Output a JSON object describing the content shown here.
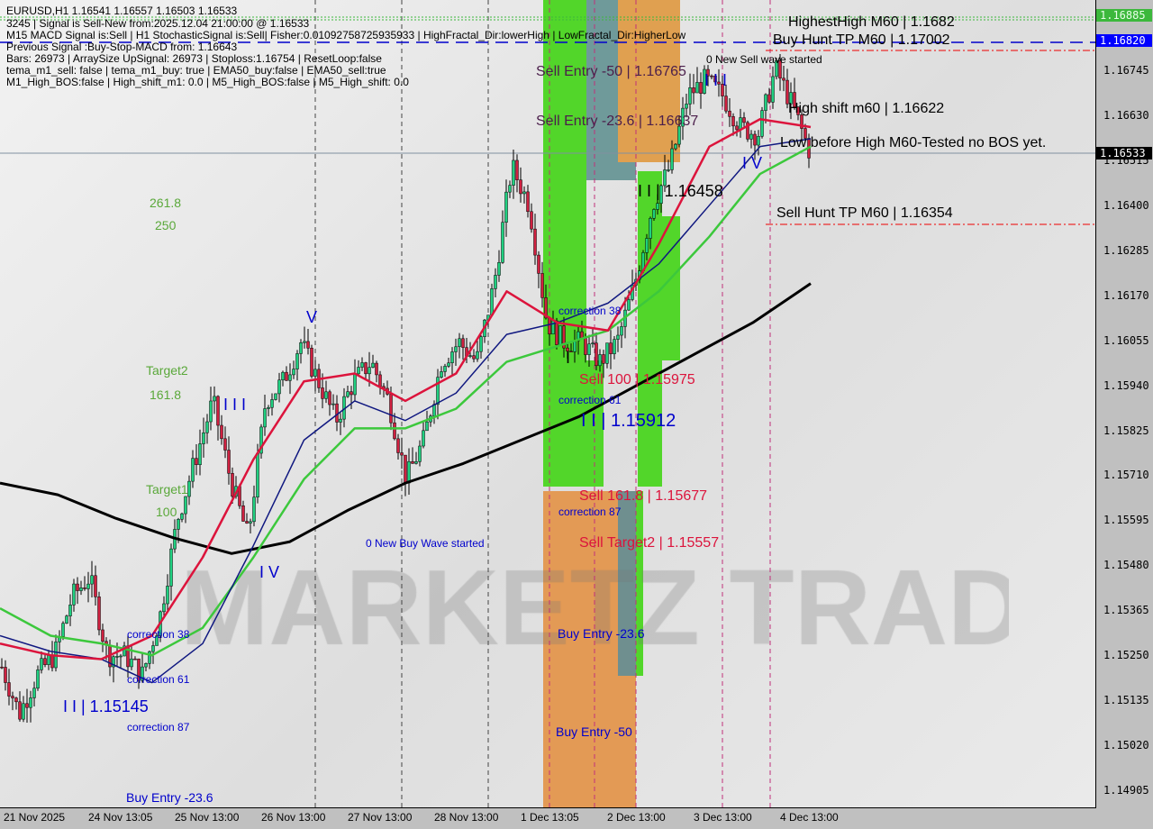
{
  "header": {
    "symbol_line": "EURUSD,H1  1.16541 1.16557 1.16503 1.16533",
    "lines": [
      "3245 | Signal is Sell-New from:2025.12.04 21:00:00 @ 1.16533",
      "M15 MACD Signal is:Sell | H1 StochasticSignal is:Sell| Fisher:0.01092758725935933 | HighFractal_Dir:lowerHigh | LowFractal_Dir:HigherLow",
      "Previous Signal :Buy-Stop-MACD from: 1.16643",
      "Bars: 26973 | ArraySize UpSignal: 26973 | Stoploss:1.16754 | ResetLoop:false",
      "tema_m1_sell: false | tema_m1_buy: true | EMA50_buy:false | EMA50_sell:true",
      "M1_High_BOS:false | High_shift_m1: 0.0 | M5_High_BOS:false | M5_High_shift: 0.0"
    ]
  },
  "watermark": "MARKETZ TRADE",
  "labels": [
    {
      "text": "261.8",
      "color": "#5aa83a"
    },
    {
      "text": "250",
      "color": "#5aa83a"
    },
    {
      "text": "Target2",
      "color": "#5aa83a"
    },
    {
      "text": "161.8",
      "color": "#5aa83a"
    },
    {
      "text": "Target1",
      "color": "#5aa83a"
    },
    {
      "text": "100",
      "color": "#5aa83a"
    },
    {
      "text": "0 New Buy Wave started",
      "color": "#0000cc"
    },
    {
      "text": "correction 38",
      "color": "#0000cc"
    },
    {
      "text": "correction 61",
      "color": "#0000cc"
    },
    {
      "text": "correction 87",
      "color": "#0000cc"
    },
    {
      "text": "I I | 1.15145",
      "color": "#0000cc"
    },
    {
      "text": "Buy Entry -23.6",
      "color": "#0000cc"
    },
    {
      "text": "Sell Entry -50 | 1.16765",
      "color": "#4b1f4b"
    },
    {
      "text": "Sell Entry -23.6 | 1.16637",
      "color": "#4b1f4b"
    },
    {
      "text": "I I | 1.16458",
      "color": "#000000"
    },
    {
      "text": "0 New Sell wave started",
      "color": "#000000"
    },
    {
      "text": "HighestHigh   M60 | 1.1682",
      "color": "#000000"
    },
    {
      "text": "Buy Hunt TP M60 | 1.17002",
      "color": "#000000"
    },
    {
      "text": "High shift m60 | 1.16622",
      "color": "#000000"
    },
    {
      "text": "Low before High  M60-Tested no BOS yet.",
      "color": "#000000"
    },
    {
      "text": "Sell Hunt TP M60 | 1.16354",
      "color": "#000000"
    },
    {
      "text": "correction 38",
      "color": "#0000cc"
    },
    {
      "text": "Sell 100 | 1.15975",
      "color": "#dc143c"
    },
    {
      "text": "correction 61",
      "color": "#0000cc"
    },
    {
      "text": "I I | 1.15912",
      "color": "#0000cc"
    },
    {
      "text": "Sell 161.8 | 1.15677",
      "color": "#dc143c"
    },
    {
      "text": "correction 87",
      "color": "#0000cc"
    },
    {
      "text": "Sell Target2 | 1.15557",
      "color": "#dc143c"
    },
    {
      "text": "Buy Entry -23.6",
      "color": "#0000cc"
    },
    {
      "text": "Buy Entry -50",
      "color": "#0000cc"
    },
    {
      "text": "I",
      "color": "#000000"
    },
    {
      "text": "I I I",
      "color": "#0000cc"
    },
    {
      "text": "I V",
      "color": "#0000cc"
    },
    {
      "text": "V",
      "color": "#0000cc"
    },
    {
      "text": "I I I",
      "color": "#0000cc"
    },
    {
      "text": "I V",
      "color": "#0000cc"
    }
  ],
  "price_axis": {
    "ticks": [
      "1.16745",
      "1.16630",
      "1.16515",
      "1.16400",
      "1.16285",
      "1.16170",
      "1.16055",
      "1.15940",
      "1.15825",
      "1.15710",
      "1.15595",
      "1.15480",
      "1.15365",
      "1.15250",
      "1.15135",
      "1.15020",
      "1.14905"
    ],
    "markers": [
      {
        "text": "1.16885",
        "bg": "#3cb83c",
        "fg": "#e8ffe8"
      },
      {
        "text": "1.16820",
        "bg": "#0000ff",
        "fg": "#ffffff"
      },
      {
        "text": "1.16533",
        "bg": "#000000",
        "fg": "#ffffff"
      }
    ]
  },
  "time_axis": [
    "21 Nov 2025",
    "24 Nov 13:05",
    "25 Nov 13:00",
    "26 Nov 13:00",
    "27 Nov 13:00",
    "28 Nov 13:00",
    "1 Dec 13:05",
    "2 Dec 13:00",
    "3 Dec 13:00",
    "4 Dec 13:00"
  ],
  "chart_data": {
    "type": "candlestick",
    "symbol": "EURUSD",
    "timeframe": "H1",
    "ylim": [
      1.1485,
      1.1692
    ],
    "last_price": 1.16533,
    "close_path": [
      1.1522,
      1.151,
      1.152,
      1.1525,
      1.154,
      1.1545,
      1.1525,
      1.1525,
      1.152,
      1.1535,
      1.156,
      1.1575,
      1.159,
      1.157,
      1.1555,
      1.159,
      1.1595,
      1.1605,
      1.1595,
      1.1585,
      1.1595,
      1.16,
      1.159,
      1.157,
      1.158,
      1.16,
      1.1605,
      1.16,
      1.162,
      1.165,
      1.164,
      1.161,
      1.1605,
      1.1605,
      1.16,
      1.1605,
      1.162,
      1.164,
      1.165,
      1.1668,
      1.1672,
      1.1668,
      1.166,
      1.1658,
      1.1675,
      1.1665,
      1.1653
    ],
    "ma_slow": [
      1.1569,
      1.1566,
      1.156,
      1.1555,
      1.1551,
      1.1554,
      1.1562,
      1.1569,
      1.1574,
      1.158,
      1.1586,
      1.1594,
      1.1602,
      1.161,
      1.162
    ],
    "ema_red": [
      1.1528,
      1.1525,
      1.1524,
      1.153,
      1.155,
      1.1575,
      1.1595,
      1.1597,
      1.159,
      1.1597,
      1.1618,
      1.161,
      1.1608,
      1.163,
      1.1655,
      1.1662,
      1.166
    ],
    "ema_blue": [
      1.153,
      1.1526,
      1.1524,
      1.1518,
      1.1528,
      1.1553,
      1.158,
      1.159,
      1.1585,
      1.1592,
      1.1607,
      1.161,
      1.1615,
      1.1625,
      1.164,
      1.1655,
      1.1657
    ],
    "ema_green": [
      1.1537,
      1.153,
      1.1528,
      1.1525,
      1.1532,
      1.155,
      1.157,
      1.1583,
      1.1583,
      1.1588,
      1.16,
      1.1604,
      1.1608,
      1.1618,
      1.1632,
      1.1648,
      1.1655
    ]
  }
}
